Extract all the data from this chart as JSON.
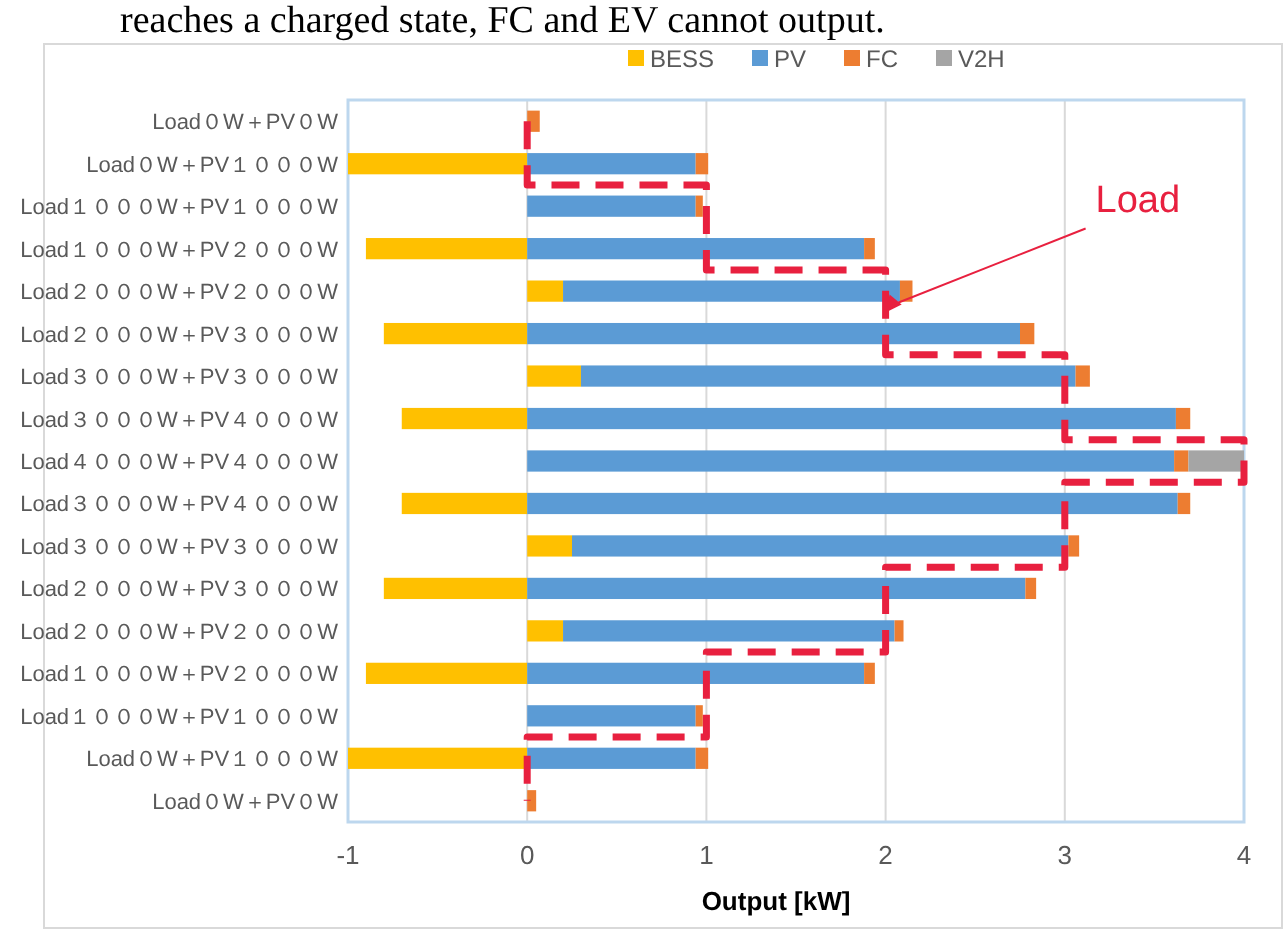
{
  "chart_data": {
    "type": "bar",
    "orientation": "horizontal",
    "stacked": true,
    "categories": [
      "Load０W＋PV０W",
      "Load０W＋PV１０００W",
      "Load１０００W＋PV１０００W",
      "Load１０００W＋PV２０００W",
      "Load２０００W＋PV２０００W",
      "Load２０００W＋PV３０００W",
      "Load３０００W＋PV３０００W",
      "Load３０００W＋PV４０００W",
      "Load４０００W＋PV４０００W",
      "Load３０００W＋PV４０００W",
      "Load３０００W＋PV３０００W",
      "Load２０００W＋PV３０００W",
      "Load２０００W＋PV２０００W",
      "Load１０００W＋PV２０００W",
      "Load１０００W＋PV１０００W",
      "Load０W＋PV１０００W",
      "Load０W＋PV０W"
    ],
    "series": [
      {
        "name": "BESS",
        "color": "#ffc000",
        "values": [
          0,
          -1.0,
          0,
          -0.9,
          0.2,
          -0.8,
          0.3,
          -0.7,
          0,
          -0.7,
          0.25,
          -0.8,
          0.2,
          -0.9,
          0,
          -1.0,
          0
        ]
      },
      {
        "name": "PV",
        "color": "#5b9bd5",
        "values": [
          0,
          0.94,
          0.94,
          1.88,
          1.88,
          2.75,
          2.76,
          3.62,
          3.61,
          3.63,
          2.77,
          2.78,
          1.85,
          1.88,
          0.94,
          0.94,
          0
        ]
      },
      {
        "name": "FC",
        "color": "#ed7d31",
        "values": [
          0.07,
          0.07,
          0.04,
          0.06,
          0.07,
          0.08,
          0.08,
          0.08,
          0.08,
          0.07,
          0.06,
          0.06,
          0.05,
          0.06,
          0.04,
          0.07,
          0.05
        ]
      },
      {
        "name": "V2H",
        "color": "#a5a5a5",
        "values": [
          0,
          0,
          0,
          0,
          0,
          0,
          0,
          0,
          0.31,
          0,
          0,
          0,
          0,
          0,
          0,
          0,
          0
        ]
      },
      {
        "type": "step",
        "color": "#e8203f",
        "line_style": "dashed",
        "values": [
          0,
          0,
          1,
          1,
          2,
          2,
          3,
          3,
          4,
          3,
          3,
          2,
          2,
          1,
          1,
          0,
          0
        ]
      }
    ],
    "xlabel": "Output [kW]",
    "xlim": [
      -1,
      4
    ],
    "xticks": [
      -1,
      0,
      1,
      2,
      3,
      4
    ],
    "grid": "x",
    "legend": "top",
    "annotations": [
      "reaches a charged state, FC and EV cannot output.",
      {
        "text": "Load",
        "x": 2,
        "y": "Load２０００W＋PV２０００W"
      }
    ]
  }
}
